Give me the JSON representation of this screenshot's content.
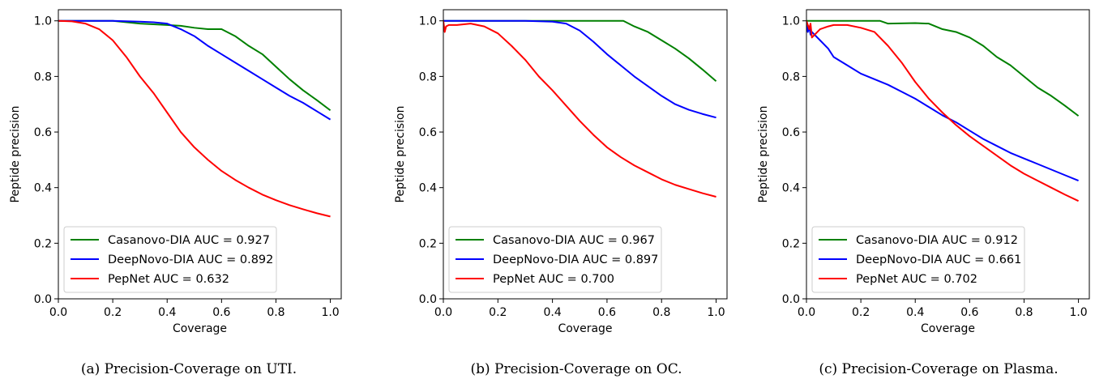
{
  "chart_data": [
    {
      "type": "line",
      "caption": "(a) Precision-Coverage on UTI.",
      "xlabel": "Coverage",
      "ylabel": "Peptide precision",
      "xlim": [
        0,
        1.04
      ],
      "ylim": [
        0,
        1.04
      ],
      "xticks": [
        "0.0",
        "0.2",
        "0.4",
        "0.6",
        "0.8",
        "1.0"
      ],
      "yticks": [
        "0.0",
        "0.2",
        "0.4",
        "0.6",
        "0.8",
        "1.0"
      ],
      "legend_position": "lower-left",
      "series": [
        {
          "name": "Casanovo-DIA AUC = 0.927",
          "color": "#008000",
          "x": [
            0,
            0.1,
            0.2,
            0.3,
            0.4,
            0.45,
            0.5,
            0.55,
            0.6,
            0.65,
            0.7,
            0.75,
            0.8,
            0.85,
            0.9,
            0.95,
            1.0
          ],
          "y": [
            1.0,
            1.0,
            1.0,
            0.99,
            0.985,
            0.982,
            0.975,
            0.97,
            0.97,
            0.945,
            0.91,
            0.88,
            0.835,
            0.79,
            0.75,
            0.715,
            0.678
          ]
        },
        {
          "name": "DeepNovo-DIA AUC = 0.892",
          "color": "#0000ff",
          "x": [
            0,
            0.1,
            0.2,
            0.3,
            0.35,
            0.4,
            0.45,
            0.5,
            0.55,
            0.6,
            0.65,
            0.7,
            0.75,
            0.8,
            0.85,
            0.9,
            0.95,
            1.0
          ],
          "y": [
            1.0,
            1.0,
            1.0,
            0.997,
            0.995,
            0.99,
            0.97,
            0.945,
            0.91,
            0.88,
            0.85,
            0.82,
            0.79,
            0.76,
            0.73,
            0.705,
            0.675,
            0.645
          ]
        },
        {
          "name": "PepNet AUC = 0.632",
          "color": "#ff0000",
          "x": [
            0,
            0.05,
            0.1,
            0.15,
            0.2,
            0.25,
            0.3,
            0.35,
            0.4,
            0.45,
            0.5,
            0.55,
            0.6,
            0.65,
            0.7,
            0.75,
            0.8,
            0.85,
            0.9,
            0.95,
            1.0
          ],
          "y": [
            1.0,
            0.998,
            0.99,
            0.97,
            0.93,
            0.87,
            0.8,
            0.74,
            0.67,
            0.6,
            0.545,
            0.5,
            0.46,
            0.428,
            0.4,
            0.375,
            0.355,
            0.337,
            0.322,
            0.308,
            0.296
          ]
        }
      ]
    },
    {
      "type": "line",
      "caption": "(b) Precision-Coverage on OC.",
      "xlabel": "Coverage",
      "ylabel": "Peptide precision",
      "xlim": [
        0,
        1.04
      ],
      "ylim": [
        0,
        1.04
      ],
      "xticks": [
        "0.0",
        "0.2",
        "0.4",
        "0.6",
        "0.8",
        "1.0"
      ],
      "yticks": [
        "0.0",
        "0.2",
        "0.4",
        "0.6",
        "0.8",
        "1.0"
      ],
      "legend_position": "lower-left",
      "series": [
        {
          "name": "Casanovo-DIA AUC = 0.967",
          "color": "#008000",
          "x": [
            0,
            0.1,
            0.2,
            0.3,
            0.4,
            0.5,
            0.6,
            0.66,
            0.7,
            0.75,
            0.8,
            0.85,
            0.9,
            0.95,
            1.0
          ],
          "y": [
            1.0,
            1.0,
            1.0,
            1.0,
            1.0,
            1.0,
            1.0,
            1.0,
            0.98,
            0.96,
            0.93,
            0.9,
            0.865,
            0.825,
            0.783
          ]
        },
        {
          "name": "DeepNovo-DIA AUC = 0.897",
          "color": "#0000ff",
          "x": [
            0,
            0.1,
            0.2,
            0.3,
            0.4,
            0.45,
            0.5,
            0.55,
            0.6,
            0.65,
            0.7,
            0.75,
            0.8,
            0.85,
            0.9,
            0.95,
            1.0
          ],
          "y": [
            1.0,
            1.0,
            1.0,
            1.0,
            0.997,
            0.99,
            0.965,
            0.925,
            0.88,
            0.84,
            0.8,
            0.765,
            0.73,
            0.7,
            0.68,
            0.665,
            0.652
          ]
        },
        {
          "name": "PepNet AUC = 0.700",
          "color": "#ff0000",
          "x": [
            0,
            0.005,
            0.01,
            0.02,
            0.05,
            0.1,
            0.15,
            0.2,
            0.25,
            0.3,
            0.35,
            0.4,
            0.45,
            0.5,
            0.55,
            0.6,
            0.65,
            0.7,
            0.75,
            0.8,
            0.85,
            0.9,
            0.95,
            1.0
          ],
          "y": [
            1.0,
            0.96,
            0.98,
            0.985,
            0.985,
            0.99,
            0.98,
            0.955,
            0.91,
            0.86,
            0.8,
            0.75,
            0.695,
            0.64,
            0.59,
            0.545,
            0.51,
            0.48,
            0.455,
            0.43,
            0.41,
            0.395,
            0.38,
            0.367
          ]
        }
      ]
    },
    {
      "type": "line",
      "caption": "(c) Precision-Coverage on Plasma.",
      "xlabel": "Coverage",
      "ylabel": "Peptide precision",
      "xlim": [
        0,
        1.04
      ],
      "ylim": [
        0,
        1.04
      ],
      "xticks": [
        "0.0",
        "0.2",
        "0.4",
        "0.6",
        "0.8",
        "1.0"
      ],
      "yticks": [
        "0.0",
        "0.2",
        "0.4",
        "0.6",
        "0.8",
        "1.0"
      ],
      "legend_position": "lower-left",
      "series": [
        {
          "name": "Casanovo-DIA AUC = 0.912",
          "color": "#008000",
          "x": [
            0,
            0.1,
            0.2,
            0.27,
            0.3,
            0.4,
            0.45,
            0.5,
            0.55,
            0.6,
            0.65,
            0.7,
            0.75,
            0.8,
            0.85,
            0.9,
            0.95,
            1.0
          ],
          "y": [
            1.0,
            1.0,
            1.0,
            1.0,
            0.99,
            0.992,
            0.99,
            0.97,
            0.96,
            0.94,
            0.91,
            0.87,
            0.84,
            0.8,
            0.76,
            0.73,
            0.695,
            0.658
          ]
        },
        {
          "name": "DeepNovo-DIA AUC = 0.661",
          "color": "#0000ff",
          "x": [
            0,
            0.005,
            0.01,
            0.015,
            0.02,
            0.03,
            0.05,
            0.08,
            0.1,
            0.15,
            0.2,
            0.25,
            0.3,
            0.35,
            0.4,
            0.45,
            0.5,
            0.55,
            0.6,
            0.65,
            0.7,
            0.75,
            0.8,
            0.85,
            0.9,
            0.95,
            1.0
          ],
          "y": [
            1.0,
            0.96,
            0.98,
            0.95,
            0.96,
            0.95,
            0.93,
            0.9,
            0.87,
            0.84,
            0.81,
            0.79,
            0.77,
            0.745,
            0.72,
            0.69,
            0.66,
            0.635,
            0.605,
            0.575,
            0.55,
            0.525,
            0.505,
            0.485,
            0.465,
            0.445,
            0.425
          ]
        },
        {
          "name": "PepNet AUC = 0.702",
          "color": "#ff0000",
          "x": [
            0,
            0.01,
            0.015,
            0.02,
            0.03,
            0.05,
            0.08,
            0.1,
            0.15,
            0.2,
            0.25,
            0.3,
            0.35,
            0.4,
            0.45,
            0.5,
            0.55,
            0.6,
            0.65,
            0.7,
            0.75,
            0.8,
            0.85,
            0.9,
            0.95,
            1.0
          ],
          "y": [
            1.0,
            0.97,
            0.99,
            0.94,
            0.95,
            0.97,
            0.98,
            0.985,
            0.985,
            0.975,
            0.96,
            0.91,
            0.85,
            0.78,
            0.72,
            0.67,
            0.625,
            0.585,
            0.55,
            0.515,
            0.48,
            0.45,
            0.425,
            0.4,
            0.375,
            0.352
          ]
        }
      ]
    }
  ]
}
